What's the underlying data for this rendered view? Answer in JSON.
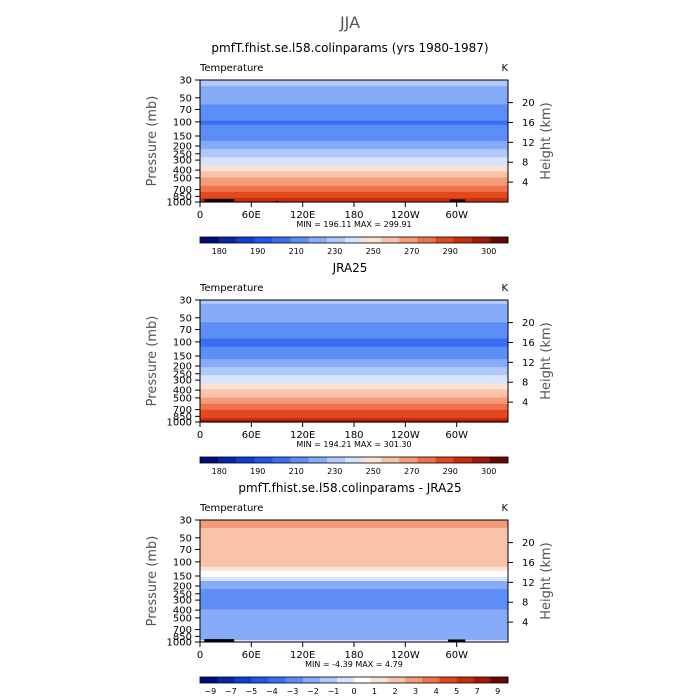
{
  "figure_title": "JJA",
  "palette": {
    "temperature": [
      "#000c7d",
      "#0726a8",
      "#0f3fd2",
      "#1f55ec",
      "#3a6ff5",
      "#5d8ef7",
      "#86abf8",
      "#b0c8fb",
      "#d6e4fd",
      "#fbe2d4",
      "#f8c3a8",
      "#f59b79",
      "#f0724d",
      "#e4481f",
      "#cb2d0f",
      "#a4170a",
      "#6b0804"
    ],
    "difference": [
      "#000c7d",
      "#0726a8",
      "#0f3fd2",
      "#1f55ec",
      "#3a6ff5",
      "#5d8ef7",
      "#86abf8",
      "#b0c8fb",
      "#d6e4fd",
      "#ffffff",
      "#fbe2d4",
      "#f8c3a8",
      "#f59b79",
      "#f0724d",
      "#e4481f",
      "#cb2d0f",
      "#a4170a",
      "#6b0804"
    ],
    "topography": "#000000"
  },
  "chart_data": [
    {
      "type": "heatmap",
      "title": "pmfT.fhist.se.l58.colinparams (yrs 1980-1987)",
      "left_label": "Temperature",
      "right_label": "K",
      "ylabel": "Pressure  (mb)",
      "ylabel_right": "Height  (km)",
      "x_ticks": [
        "0",
        "60E",
        "120E",
        "180",
        "120W",
        "60W"
      ],
      "x_tick_lon": [
        0,
        60,
        120,
        180,
        240,
        300
      ],
      "x_range": [
        0,
        360
      ],
      "y_ticks": [
        "30",
        "50",
        "70",
        "100",
        "150",
        "200",
        "250",
        "300",
        "400",
        "500",
        "700",
        "850",
        "1000"
      ],
      "y_tick_p": [
        30,
        50,
        70,
        100,
        150,
        200,
        250,
        300,
        400,
        500,
        700,
        850,
        1000
      ],
      "y_range_mb": [
        1000,
        30
      ],
      "height_ticks": [
        "20",
        "16",
        "12",
        "8",
        "4"
      ],
      "height_km": [
        20,
        16,
        12,
        8,
        4
      ],
      "stats": "MIN =  196.11   MAX =  299.91",
      "colorbar_labels": [
        "180",
        "190",
        "210",
        "230",
        "250",
        "270",
        "290",
        "300"
      ],
      "colorbar_levels": [
        175,
        180,
        185,
        190,
        200,
        210,
        220,
        230,
        240,
        250,
        260,
        270,
        280,
        290,
        295,
        300
      ],
      "palette": "temperature",
      "profile": {
        "p": [
          30,
          50,
          70,
          100,
          150,
          200,
          250,
          300,
          400,
          500,
          700,
          850,
          1000
        ],
        "value": [
          223,
          214,
          206,
          199,
          203,
          216,
          226,
          234,
          248,
          260,
          277,
          287,
          296
        ]
      },
      "mask_lon": [
        [
          5,
          40
        ],
        [
          88,
          92
        ],
        [
          292,
          310
        ]
      ],
      "mask_top_mb": [
        [
          920,
          960
        ],
        [
          970,
          980
        ],
        [
          930,
          965
        ]
      ]
    },
    {
      "type": "heatmap",
      "title": "JRA25",
      "left_label": "Temperature",
      "right_label": "K",
      "ylabel": "Pressure  (mb)",
      "ylabel_right": "Height  (km)",
      "x_ticks": [
        "0",
        "60E",
        "120E",
        "180",
        "120W",
        "60W"
      ],
      "x_tick_lon": [
        0,
        60,
        120,
        180,
        240,
        300
      ],
      "x_range": [
        0,
        360
      ],
      "y_ticks": [
        "30",
        "50",
        "70",
        "100",
        "150",
        "200",
        "250",
        "300",
        "400",
        "500",
        "700",
        "850",
        "1000"
      ],
      "y_tick_p": [
        30,
        50,
        70,
        100,
        150,
        200,
        250,
        300,
        400,
        500,
        700,
        850,
        1000
      ],
      "y_range_mb": [
        1000,
        30
      ],
      "height_ticks": [
        "20",
        "16",
        "12",
        "8",
        "4"
      ],
      "height_km": [
        20,
        16,
        12,
        8,
        4
      ],
      "stats": "MIN =  194.21   MAX =  301.30",
      "colorbar_labels": [
        "180",
        "190",
        "210",
        "230",
        "250",
        "270",
        "290",
        "300"
      ],
      "colorbar_levels": [
        175,
        180,
        185,
        190,
        200,
        210,
        220,
        230,
        240,
        250,
        260,
        270,
        280,
        290,
        295,
        300
      ],
      "palette": "temperature",
      "profile": {
        "p": [
          30,
          50,
          70,
          100,
          150,
          200,
          250,
          300,
          400,
          500,
          700,
          850,
          1000
        ],
        "value": [
          222,
          213,
          206,
          198,
          205,
          218,
          228,
          236,
          250,
          262,
          279,
          289,
          297
        ]
      },
      "mask_lon": [],
      "mask_top_mb": []
    },
    {
      "type": "heatmap",
      "title": "pmfT.fhist.se.l58.colinparams - JRA25",
      "left_label": "Temperature",
      "right_label": "K",
      "ylabel": "Pressure  (mb)",
      "ylabel_right": "Height  (km)",
      "x_ticks": [
        "0",
        "60E",
        "120E",
        "180",
        "120W",
        "60W"
      ],
      "x_tick_lon": [
        0,
        60,
        120,
        180,
        240,
        300
      ],
      "x_range": [
        0,
        360
      ],
      "y_ticks": [
        "30",
        "50",
        "70",
        "100",
        "150",
        "200",
        "250",
        "300",
        "400",
        "500",
        "700",
        "850",
        "1000"
      ],
      "y_tick_p": [
        30,
        50,
        70,
        100,
        150,
        200,
        250,
        300,
        400,
        500,
        700,
        850,
        1000
      ],
      "y_range_mb": [
        1000,
        30
      ],
      "height_ticks": [
        "20",
        "16",
        "12",
        "8",
        "4"
      ],
      "height_km": [
        20,
        16,
        12,
        8,
        4
      ],
      "stats": "MIN =  -4.39   MAX =    4.79",
      "colorbar_labels": [
        "−9",
        "−7",
        "−5",
        "−4",
        "−3",
        "−2",
        "−1",
        "0",
        "1",
        "2",
        "3",
        "4",
        "5",
        "7",
        "9"
      ],
      "colorbar_levels": [
        -9,
        -7,
        -5,
        -4,
        -3,
        -2,
        -1,
        0,
        1,
        2,
        3,
        4,
        5,
        7,
        9
      ],
      "palette": "difference",
      "profile": {
        "p": [
          30,
          50,
          70,
          100,
          150,
          200,
          250,
          300,
          400,
          500,
          700,
          850,
          1000
        ],
        "value": [
          2.5,
          1.5,
          1.5,
          1.8,
          -0.5,
          -1.5,
          -2.5,
          -2.5,
          -2.0,
          -1.5,
          -1.5,
          -1.5,
          -0.5
        ]
      },
      "mask_lon": [
        [
          5,
          40
        ],
        [
          290,
          310
        ]
      ],
      "mask_top_mb": [
        [
          920,
          960
        ],
        [
          930,
          965
        ]
      ]
    }
  ]
}
